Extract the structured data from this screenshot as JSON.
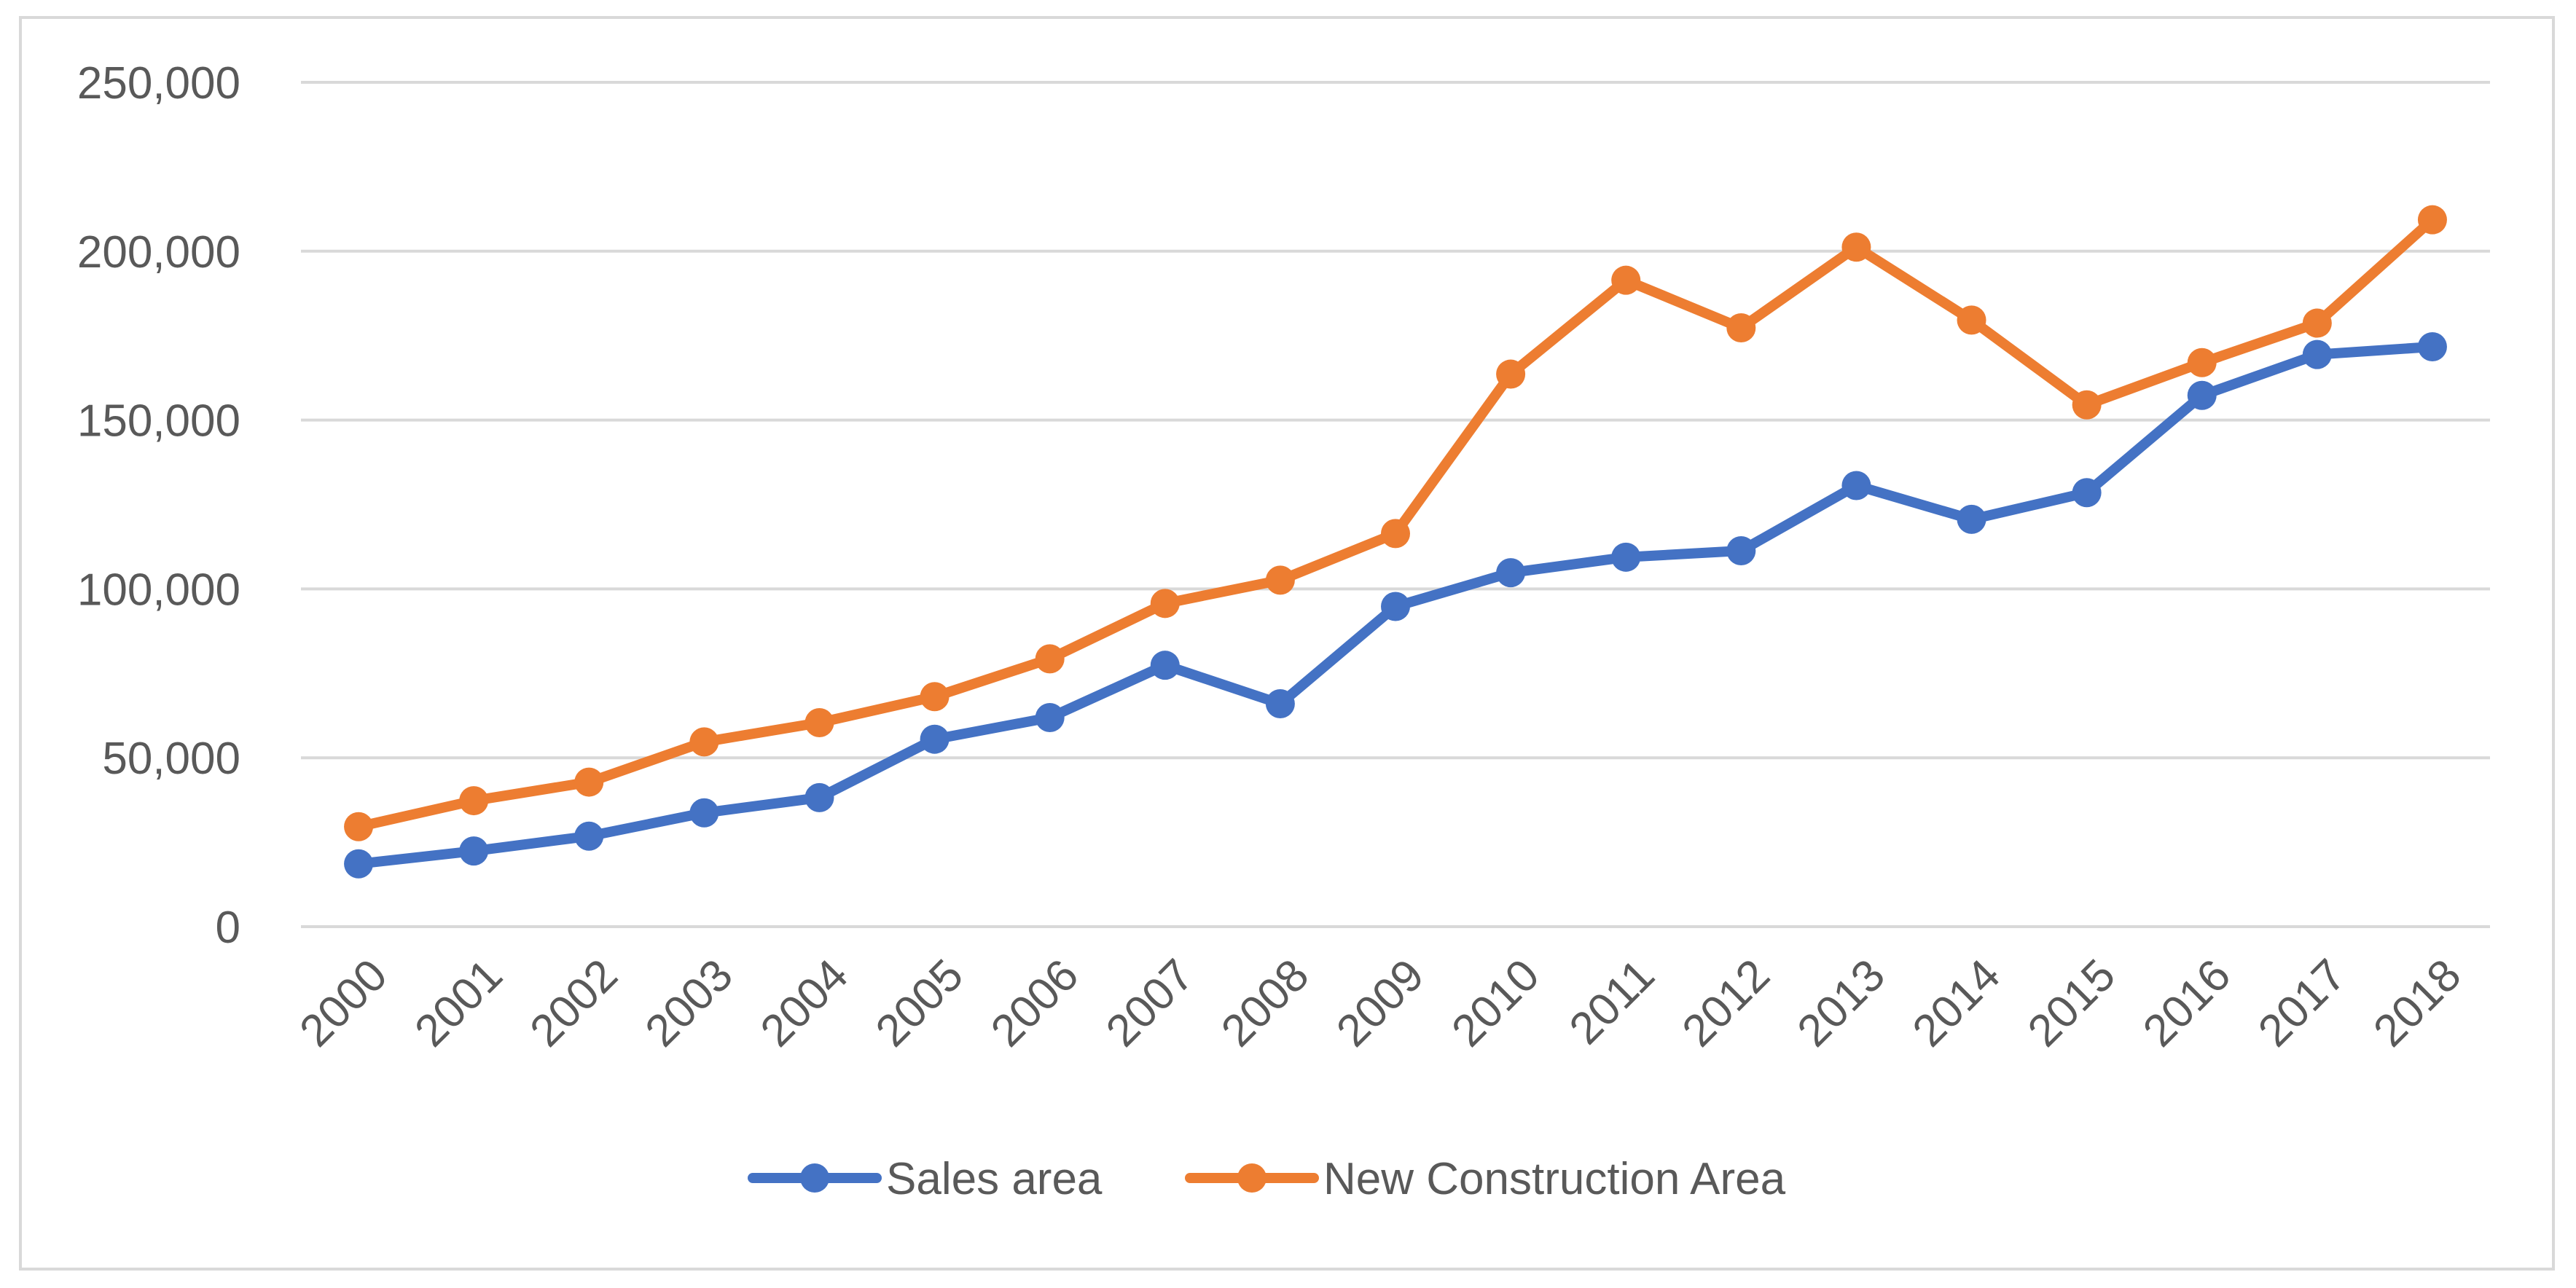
{
  "chart_data": {
    "type": "line",
    "title": "",
    "xlabel": "",
    "ylabel": "",
    "categories": [
      "2000",
      "2001",
      "2002",
      "2003",
      "2004",
      "2005",
      "2006",
      "2007",
      "2008",
      "2009",
      "2010",
      "2011",
      "2012",
      "2013",
      "2014",
      "2015",
      "2016",
      "2017",
      "2018"
    ],
    "ylim": [
      0,
      250000
    ],
    "yticks": [
      0,
      50000,
      100000,
      150000,
      200000,
      250000
    ],
    "ytick_labels": [
      "0",
      "50,000",
      "100,000",
      "150,000",
      "200,000",
      "250,000"
    ],
    "grid": true,
    "legend_position": "bottom",
    "series": [
      {
        "name": "Sales area",
        "color": "#4472c4",
        "values": [
          18600,
          22400,
          26800,
          33700,
          38200,
          55500,
          61900,
          77400,
          66000,
          94800,
          104800,
          109400,
          111300,
          130600,
          120600,
          128500,
          157300,
          169400,
          171700
        ]
      },
      {
        "name": "New Construction Area",
        "color": "#ed7d31",
        "values": [
          29600,
          37300,
          42800,
          54700,
          60400,
          68100,
          79300,
          95700,
          102600,
          116400,
          163600,
          191400,
          177300,
          201200,
          179600,
          154500,
          167000,
          178700,
          209300
        ]
      }
    ]
  }
}
